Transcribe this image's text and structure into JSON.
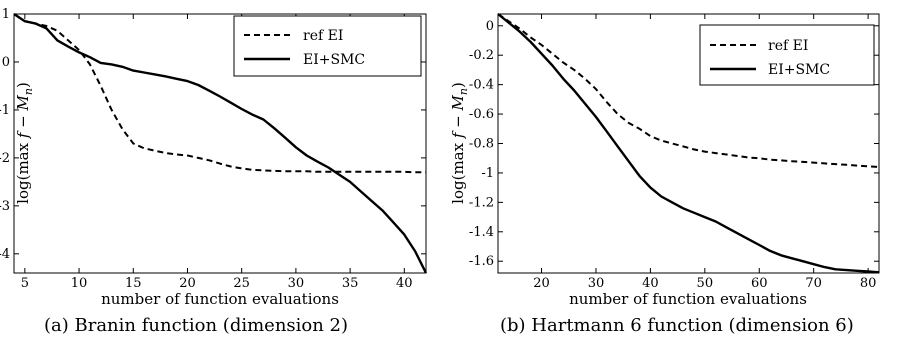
{
  "chart_data": [
    {
      "type": "line",
      "caption": "(a) Branin function (dimension 2)",
      "xlabel": "number of function evaluations",
      "ylabel": "log(max f − M_n)",
      "xlim": [
        4,
        42
      ],
      "ylim": [
        -4.4,
        1.0
      ],
      "xticks": [
        5,
        10,
        15,
        20,
        25,
        30,
        35,
        40
      ],
      "yticks": [
        1,
        0,
        -1,
        -2,
        -3,
        -4
      ],
      "grid": false,
      "legend_position": "top-right",
      "series": [
        {
          "name": "ref EI",
          "style": "dashed",
          "x": [
            4,
            5,
            6,
            7,
            8,
            9,
            10,
            11,
            12,
            13,
            14,
            15,
            16,
            17,
            18,
            19,
            20,
            21,
            22,
            23,
            24,
            25,
            26,
            27,
            28,
            29,
            30,
            31,
            32,
            33,
            34,
            35,
            36,
            37,
            38,
            39,
            40,
            41,
            42
          ],
          "y": [
            1.0,
            0.85,
            0.8,
            0.75,
            0.65,
            0.45,
            0.25,
            -0.05,
            -0.5,
            -1.0,
            -1.4,
            -1.7,
            -1.8,
            -1.85,
            -1.9,
            -1.93,
            -1.95,
            -2.0,
            -2.05,
            -2.12,
            -2.18,
            -2.22,
            -2.25,
            -2.26,
            -2.27,
            -2.28,
            -2.28,
            -2.28,
            -2.29,
            -2.29,
            -2.29,
            -2.29,
            -2.29,
            -2.29,
            -2.29,
            -2.29,
            -2.29,
            -2.3,
            -2.3
          ]
        },
        {
          "name": "EI+SMC",
          "style": "solid",
          "x": [
            4,
            5,
            6,
            7,
            8,
            9,
            10,
            11,
            12,
            13,
            14,
            15,
            16,
            17,
            18,
            19,
            20,
            21,
            22,
            23,
            24,
            25,
            26,
            27,
            28,
            29,
            30,
            31,
            32,
            33,
            34,
            35,
            36,
            37,
            38,
            39,
            40,
            41,
            42
          ],
          "y": [
            1.0,
            0.85,
            0.8,
            0.7,
            0.45,
            0.32,
            0.2,
            0.1,
            -0.02,
            -0.05,
            -0.1,
            -0.18,
            -0.22,
            -0.26,
            -0.3,
            -0.35,
            -0.4,
            -0.48,
            -0.6,
            -0.72,
            -0.85,
            -0.98,
            -1.1,
            -1.2,
            -1.38,
            -1.58,
            -1.78,
            -1.95,
            -2.08,
            -2.2,
            -2.35,
            -2.5,
            -2.7,
            -2.9,
            -3.1,
            -3.35,
            -3.6,
            -3.95,
            -4.4
          ]
        }
      ]
    },
    {
      "type": "line",
      "caption": "(b) Hartmann 6 function (dimension 6)",
      "xlabel": "number of function evaluations",
      "ylabel": "log(max f − M_n)",
      "xlim": [
        12,
        82
      ],
      "ylim": [
        -1.68,
        0.08
      ],
      "xticks": [
        20,
        30,
        40,
        50,
        60,
        70,
        80
      ],
      "yticks": [
        0,
        -0.2,
        -0.4,
        -0.6,
        -0.8,
        -1,
        -1.2,
        -1.4,
        -1.6
      ],
      "grid": false,
      "legend_position": "top-right",
      "series": [
        {
          "name": "ref EI",
          "style": "dashed",
          "x": [
            12,
            14,
            16,
            18,
            20,
            22,
            24,
            26,
            28,
            30,
            32,
            34,
            36,
            38,
            40,
            42,
            44,
            46,
            48,
            50,
            52,
            54,
            56,
            58,
            60,
            62,
            64,
            66,
            68,
            70,
            72,
            74,
            76,
            78,
            80,
            82
          ],
          "y": [
            0.08,
            0.03,
            -0.02,
            -0.08,
            -0.13,
            -0.19,
            -0.25,
            -0.3,
            -0.36,
            -0.43,
            -0.52,
            -0.6,
            -0.66,
            -0.7,
            -0.75,
            -0.78,
            -0.8,
            -0.82,
            -0.84,
            -0.855,
            -0.865,
            -0.875,
            -0.885,
            -0.895,
            -0.9,
            -0.91,
            -0.915,
            -0.92,
            -0.925,
            -0.93,
            -0.935,
            -0.94,
            -0.945,
            -0.95,
            -0.955,
            -0.96
          ]
        },
        {
          "name": "EI+SMC",
          "style": "solid",
          "x": [
            12,
            14,
            16,
            18,
            20,
            22,
            24,
            26,
            28,
            30,
            32,
            34,
            36,
            38,
            40,
            42,
            44,
            46,
            48,
            50,
            52,
            54,
            56,
            58,
            60,
            62,
            64,
            66,
            68,
            70,
            72,
            74,
            76,
            78,
            80,
            82
          ],
          "y": [
            0.08,
            0.02,
            -0.04,
            -0.11,
            -0.19,
            -0.27,
            -0.36,
            -0.44,
            -0.53,
            -0.62,
            -0.72,
            -0.82,
            -0.92,
            -1.02,
            -1.1,
            -1.16,
            -1.2,
            -1.24,
            -1.27,
            -1.3,
            -1.33,
            -1.37,
            -1.41,
            -1.45,
            -1.49,
            -1.53,
            -1.56,
            -1.58,
            -1.6,
            -1.62,
            -1.64,
            -1.655,
            -1.66,
            -1.665,
            -1.67,
            -1.675
          ]
        }
      ]
    }
  ]
}
